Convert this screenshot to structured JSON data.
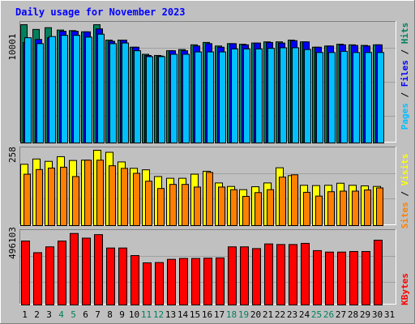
{
  "title": "Daily usage for November 2023",
  "panels": {
    "top_y_tick": "10001",
    "mid_y_tick": "258",
    "bottom_y_tick": "496103"
  },
  "legend": {
    "pages": "Pages",
    "files": "Files",
    "hits": "Hits",
    "sites": "Sites",
    "visits": "Visits",
    "kbytes": "KBytes",
    "sep": " / "
  },
  "colors": {
    "background": "#c0c0c0",
    "title": "#0000ff",
    "hits": "#00805c",
    "files": "#0000ff",
    "pages": "#00c0ff",
    "visits": "#ffff00",
    "sites": "#ff8000",
    "kbytes": "#ff0000",
    "weekend_label": "#00805c",
    "weekday_label": "#000000"
  },
  "chart_data": {
    "type": "bar",
    "title": "Daily usage for November 2023",
    "x": [
      "1",
      "2",
      "3",
      "4",
      "5",
      "6",
      "7",
      "8",
      "9",
      "10",
      "11",
      "12",
      "13",
      "14",
      "15",
      "16",
      "17",
      "18",
      "19",
      "20",
      "21",
      "22",
      "23",
      "24",
      "25",
      "26",
      "27",
      "28",
      "29",
      "30",
      "31"
    ],
    "weekend_days": [
      "4",
      "5",
      "11",
      "12",
      "18",
      "19",
      "25",
      "26"
    ],
    "top_panel": {
      "ymax": 10001,
      "series": [
        {
          "name": "Hits",
          "values": [
            10001,
            9600,
            9750,
            9550,
            9500,
            9400,
            10001,
            8700,
            8700,
            8100,
            7500,
            7400,
            7800,
            7900,
            8300,
            8500,
            8200,
            8400,
            8350,
            8450,
            8550,
            8550,
            8700,
            8550,
            8100,
            8200,
            8350,
            8300,
            8250,
            8300,
            0
          ]
        },
        {
          "name": "Files",
          "values": [
            8500,
            8750,
            8900,
            9450,
            9450,
            9400,
            9650,
            8600,
            8700,
            8100,
            7400,
            7350,
            7800,
            7800,
            8200,
            8400,
            8100,
            8400,
            8300,
            8450,
            8500,
            8450,
            8650,
            8550,
            8100,
            8200,
            8300,
            8250,
            8200,
            8300,
            0
          ]
        },
        {
          "name": "Pages",
          "values": [
            8900,
            8400,
            9000,
            9100,
            9100,
            8950,
            9200,
            8400,
            8450,
            7800,
            7300,
            7300,
            7500,
            7500,
            7700,
            7700,
            7700,
            7950,
            7950,
            7950,
            8000,
            8050,
            8050,
            7900,
            7650,
            7650,
            7750,
            7650,
            7650,
            7650,
            0
          ]
        }
      ]
    },
    "middle_panel": {
      "ymax": 258,
      "series": [
        {
          "name": "Visits",
          "values": [
            210,
            228,
            220,
            236,
            223,
            224,
            258,
            251,
            218,
            196,
            191,
            168,
            162,
            162,
            176,
            186,
            146,
            134,
            123,
            133,
            146,
            198,
            171,
            138,
            137,
            138,
            145,
            138,
            136,
            134,
            0
          ]
        },
        {
          "name": "Sites",
          "values": [
            176,
            192,
            197,
            200,
            168,
            224,
            224,
            205,
            196,
            179,
            152,
            127,
            141,
            141,
            132,
            182,
            132,
            123,
            100,
            113,
            123,
            166,
            174,
            114,
            101,
            116,
            118,
            118,
            122,
            129,
            0
          ]
        }
      ]
    },
    "bottom_panel": {
      "ymax": 496103,
      "series": [
        {
          "name": "KBytes",
          "values": [
            440000,
            360000,
            400000,
            440000,
            492000,
            460000,
            484000,
            392000,
            392000,
            340000,
            290000,
            292000,
            314000,
            320000,
            320000,
            322000,
            324000,
            400000,
            400000,
            388000,
            420000,
            416000,
            416000,
            424000,
            374000,
            364000,
            364000,
            368000,
            368000,
            446000,
            0
          ]
        }
      ]
    }
  }
}
